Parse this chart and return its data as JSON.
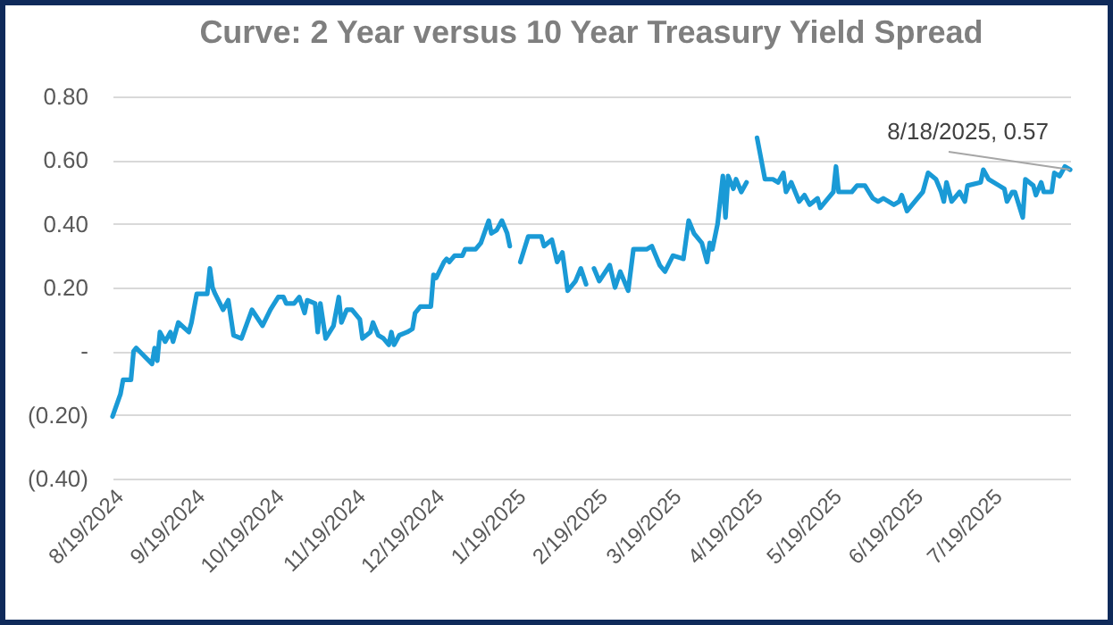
{
  "chart_data": {
    "type": "line",
    "title": "Curve: 2 Year versus 10 Year Treasury Yield Spread",
    "x": [
      "2024-08-19",
      "2024-08-22",
      "2024-08-23",
      "2024-08-26",
      "2024-08-27",
      "2024-08-28",
      "2024-09-03",
      "2024-09-04",
      "2024-09-05",
      "2024-09-06",
      "2024-09-08",
      "2024-09-10",
      "2024-09-11",
      "2024-09-13",
      "2024-09-17",
      "2024-09-18",
      "2024-09-20",
      "2024-09-24",
      "2024-09-25",
      "2024-09-26",
      "2024-09-27",
      "2024-09-30",
      "2024-10-02",
      "2024-10-04",
      "2024-10-07",
      "2024-10-11",
      "2024-10-15",
      "2024-10-18",
      "2024-10-21",
      "2024-10-23",
      "2024-10-24",
      "2024-10-27",
      "2024-10-29",
      "2024-10-31",
      "2024-11-01",
      "2024-11-04",
      "2024-11-05",
      "2024-11-06",
      "2024-11-08",
      "2024-11-11",
      "2024-11-13",
      "2024-11-14",
      "2024-11-16",
      "2024-11-18",
      "2024-11-21",
      "2024-11-22",
      "2024-11-25",
      "2024-11-26",
      "2024-11-28",
      "2024-11-30",
      "2024-12-02",
      "2024-12-03",
      "2024-12-04",
      "2024-12-06",
      "2024-12-09",
      "2024-12-11",
      "2024-12-12",
      "2024-12-14",
      "2024-12-16",
      "2024-12-18",
      "2024-12-19",
      "2024-12-20",
      "2024-12-23",
      "2024-12-24",
      "2024-12-25",
      "2024-12-27",
      "2024-12-30",
      "2024-12-31",
      "2025-01-02",
      "2025-01-04",
      "2025-01-06",
      "2025-01-09",
      "2025-01-10",
      "2025-01-12",
      "2025-01-14",
      "2025-01-16",
      "2025-01-17",
      "2025-01-20",
      "2025-01-21",
      "2025-01-24",
      "2025-01-29",
      "2025-01-30",
      "2025-02-02",
      "2025-02-04",
      "2025-02-06",
      "2025-02-08",
      "2025-02-11",
      "2025-02-13",
      "2025-02-15",
      "2025-02-16",
      "2025-02-18",
      "2025-02-20",
      "2025-02-24",
      "2025-02-26",
      "2025-02-28",
      "2025-03-03",
      "2025-03-05",
      "2025-03-10",
      "2025-03-12",
      "2025-03-15",
      "2025-03-17",
      "2025-03-20",
      "2025-03-24",
      "2025-03-26",
      "2025-03-28",
      "2025-03-31",
      "2025-04-02",
      "2025-04-03",
      "2025-04-04",
      "2025-04-06",
      "2025-04-08",
      "2025-04-09",
      "2025-04-10",
      "2025-04-12",
      "2025-04-13",
      "2025-04-15",
      "2025-04-17",
      "2025-04-19",
      "2025-04-21",
      "2025-04-24",
      "2025-04-27",
      "2025-04-29",
      "2025-05-01",
      "2025-05-02",
      "2025-05-04",
      "2025-05-07",
      "2025-05-09",
      "2025-05-11",
      "2025-05-14",
      "2025-05-15",
      "2025-05-18",
      "2025-05-20",
      "2025-05-21",
      "2025-05-22",
      "2025-05-27",
      "2025-05-29",
      "2025-06-01",
      "2025-06-04",
      "2025-06-06",
      "2025-06-08",
      "2025-06-12",
      "2025-06-14",
      "2025-06-15",
      "2025-06-17",
      "2025-06-20",
      "2025-06-23",
      "2025-06-25",
      "2025-06-28",
      "2025-06-30",
      "2025-07-01",
      "2025-07-02",
      "2025-07-04",
      "2025-07-07",
      "2025-07-09",
      "2025-07-10",
      "2025-07-15",
      "2025-07-16",
      "2025-07-18",
      "2025-07-22",
      "2025-07-24",
      "2025-07-25",
      "2025-07-27",
      "2025-07-28",
      "2025-07-31",
      "2025-08-01",
      "2025-08-04",
      "2025-08-05",
      "2025-08-07",
      "2025-08-08",
      "2025-08-11",
      "2025-08-12",
      "2025-08-14",
      "2025-08-16",
      "2025-08-18"
    ],
    "series": [
      {
        "color": "#1a9ad6",
        "values": [
          -0.205,
          -0.135,
          -0.09,
          -0.09,
          0.0,
          0.01,
          -0.04,
          0.01,
          -0.03,
          0.06,
          0.03,
          0.06,
          0.03,
          0.09,
          0.06,
          0.09,
          0.18,
          0.18,
          0.26,
          0.2,
          0.18,
          0.13,
          0.16,
          0.05,
          0.04,
          0.13,
          0.08,
          0.13,
          0.17,
          0.17,
          0.15,
          0.15,
          0.17,
          0.12,
          0.16,
          0.15,
          0.06,
          0.15,
          0.04,
          0.08,
          0.17,
          0.09,
          0.13,
          0.13,
          0.1,
          0.04,
          0.06,
          0.09,
          0.05,
          0.04,
          0.02,
          0.06,
          0.02,
          0.05,
          0.06,
          0.07,
          0.12,
          0.14,
          0.14,
          0.14,
          0.24,
          0.23,
          0.28,
          0.29,
          0.28,
          0.3,
          0.3,
          0.32,
          0.32,
          0.32,
          0.34,
          0.41,
          0.37,
          0.38,
          0.41,
          0.37,
          0.33,
          null,
          0.28,
          0.36,
          0.36,
          0.33,
          0.35,
          0.28,
          0.31,
          0.19,
          0.22,
          0.26,
          0.21,
          null,
          0.26,
          0.22,
          0.27,
          0.2,
          0.25,
          0.19,
          0.32,
          0.32,
          0.33,
          0.27,
          0.25,
          0.3,
          0.29,
          0.41,
          0.37,
          0.34,
          0.28,
          0.34,
          0.32,
          0.4,
          0.55,
          0.42,
          0.55,
          0.51,
          0.54,
          0.5,
          0.53,
          null,
          0.67,
          0.54,
          0.54,
          0.53,
          0.56,
          0.5,
          0.53,
          0.47,
          0.49,
          0.46,
          0.48,
          0.45,
          0.48,
          0.5,
          0.58,
          0.5,
          0.5,
          0.52,
          0.52,
          0.48,
          0.47,
          0.48,
          0.46,
          0.47,
          0.49,
          0.44,
          0.47,
          0.5,
          0.56,
          0.54,
          0.5,
          0.47,
          0.53,
          0.47,
          0.5,
          0.47,
          0.52,
          0.53,
          0.57,
          0.54,
          0.52,
          0.51,
          0.47,
          0.5,
          0.5,
          0.42,
          0.54,
          0.52,
          0.49,
          0.53,
          0.5,
          0.5,
          0.56,
          0.55,
          0.58,
          0.57
        ]
      }
    ],
    "xlim": [
      "2024-08-19",
      "2025-08-18"
    ],
    "xticks": [
      {
        "value": "2024-08-19",
        "label": "8/19/2024"
      },
      {
        "value": "2024-09-19",
        "label": "9/19/2024"
      },
      {
        "value": "2024-10-19",
        "label": "10/19/2024"
      },
      {
        "value": "2024-11-19",
        "label": "11/19/2024"
      },
      {
        "value": "2024-12-19",
        "label": "12/19/2024"
      },
      {
        "value": "2025-01-19",
        "label": "1/19/2025"
      },
      {
        "value": "2025-02-19",
        "label": "2/19/2025"
      },
      {
        "value": "2025-03-19",
        "label": "3/19/2025"
      },
      {
        "value": "2025-04-19",
        "label": "4/19/2025"
      },
      {
        "value": "2025-05-19",
        "label": "5/19/2025"
      },
      {
        "value": "2025-06-19",
        "label": "6/19/2025"
      },
      {
        "value": "2025-07-19",
        "label": "7/19/2025"
      }
    ],
    "ylim": [
      -0.4,
      0.8
    ],
    "yticks": [
      {
        "value": -0.4,
        "label": "(0.40)"
      },
      {
        "value": -0.2,
        "label": "(0.20)"
      },
      {
        "value": 0,
        "label": "-"
      },
      {
        "value": 0.2,
        "label": "0.20"
      },
      {
        "value": 0.4,
        "label": "0.40"
      },
      {
        "value": 0.6,
        "label": "0.60"
      },
      {
        "value": 0.8,
        "label": "0.80"
      }
    ],
    "grid": "y",
    "annotations": [
      {
        "text": "8/18/2025, 0.57",
        "x": "2025-08-18",
        "y": 0.57
      }
    ]
  }
}
